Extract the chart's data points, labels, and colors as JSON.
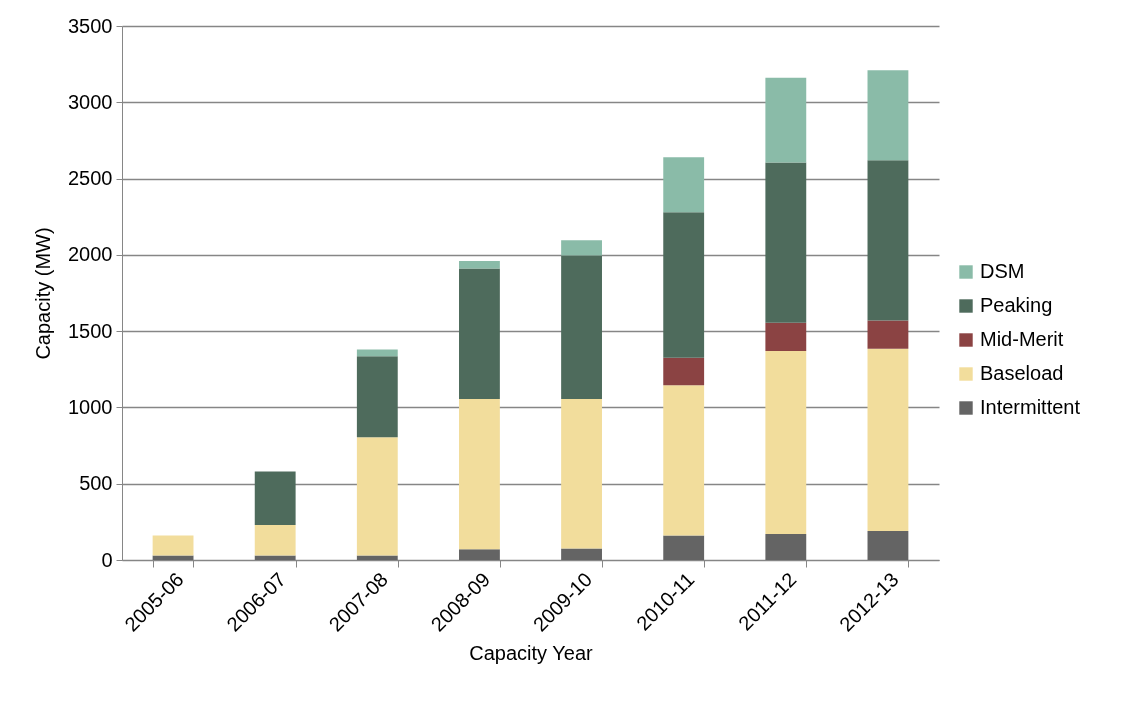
{
  "chart_data": {
    "type": "bar",
    "stacked": true,
    "xlabel": "Capacity Year",
    "ylabel": "Capacity (MW)",
    "categories": [
      "2005-06",
      "2006-07",
      "2007-08",
      "2008-09",
      "2009-10",
      "2010-11",
      "2011-12",
      "2012-13"
    ],
    "series": [
      {
        "name": "Intermittent",
        "color": "#646464",
        "values": [
          30,
          30,
          30,
          70,
          75,
          160,
          170,
          190
        ]
      },
      {
        "name": "Baseload",
        "color": "#f2dd9c",
        "values": [
          130,
          200,
          775,
          985,
          980,
          985,
          1200,
          1195
        ]
      },
      {
        "name": "Mid-Merit",
        "color": "#8b4343",
        "values": [
          0,
          0,
          0,
          0,
          0,
          180,
          185,
          185
        ]
      },
      {
        "name": "Peaking",
        "color": "#4e6b5c",
        "values": [
          0,
          350,
          530,
          855,
          940,
          955,
          1050,
          1050
        ]
      },
      {
        "name": "DSM",
        "color": "#8abba8",
        "values": [
          0,
          0,
          45,
          50,
          100,
          360,
          555,
          590
        ]
      }
    ],
    "ylim": [
      0,
      3500
    ],
    "yticks": [
      0,
      500,
      1000,
      1500,
      2000,
      2500,
      3000,
      3500
    ],
    "grid": "y",
    "legend": "right"
  }
}
